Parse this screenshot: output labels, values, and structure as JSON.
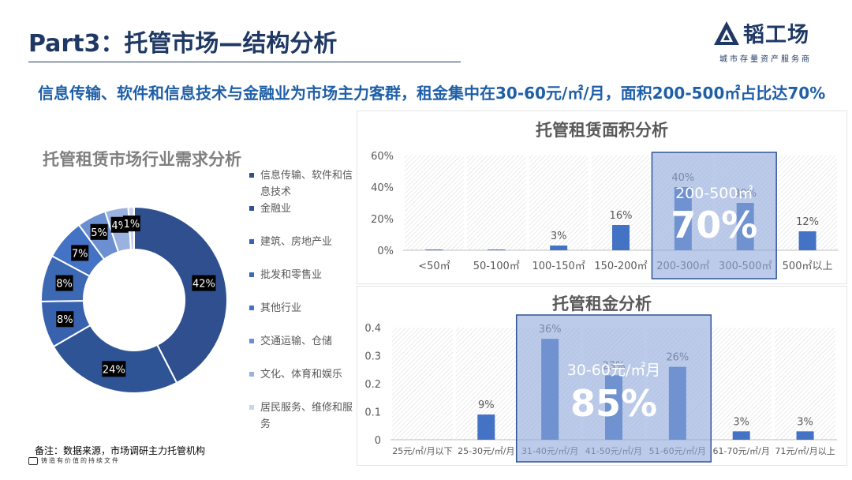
{
  "header": {
    "title": "Part3：托管市场—结构分析",
    "logo_name": "韬工场",
    "logo_tagline": "城市存量资产服务商"
  },
  "headline": "信息传输、软件和信息技术与金融业为市场主力客群，租金集中在30-60元/㎡/月，面积200-500㎡占比达70%",
  "note": "备注：数据来源，市场调研主力托管机构",
  "footer_text": "铸造有价值的持续文件",
  "colors": {
    "navy": "#1f3864",
    "bar": "#4472c4",
    "highlight_fill": "#8ea9db",
    "headline_blue": "#1f5fa8"
  },
  "chart_data": [
    {
      "type": "pie",
      "title": "托管租赁市场行业需求分析",
      "style": "donut",
      "categories": [
        "信息传输、软件和信息技术",
        "金融业",
        "建筑、房地产业",
        "批发和零售业",
        "其他行业",
        "交通运输、仓储",
        "文化、体育和娱乐",
        "居民服务、维修和服务"
      ],
      "values": [
        42,
        24,
        8,
        8,
        7,
        5,
        4,
        1
      ],
      "labels": [
        "42%",
        "24%",
        "8%",
        "8%",
        "7%",
        "5%",
        "4%",
        "1%"
      ],
      "colors": [
        "#2f4f8f",
        "#2f5496",
        "#3862ad",
        "#3c68b4",
        "#4472c4",
        "#6b8fd1",
        "#9bb1de",
        "#c9d4ec"
      ],
      "legend_position": "right"
    },
    {
      "type": "bar",
      "title": "托管租赁面积分析",
      "categories": [
        "<50㎡",
        "50-100㎡",
        "100-150㎡",
        "150-200㎡",
        "200-300㎡",
        "300-500㎡",
        "500㎡以上"
      ],
      "values": [
        0.5,
        0.5,
        3,
        16,
        40,
        30,
        12
      ],
      "labels": [
        "",
        "",
        "3%",
        "16%",
        "40%",
        "30%",
        "12%"
      ],
      "yticks": [
        "0%",
        "20%",
        "40%",
        "60%"
      ],
      "ylim": [
        0,
        60
      ],
      "grid": "vertical hatched bands",
      "highlight": {
        "range_label": "200-500㎡",
        "value_label": "70%",
        "categories": [
          "200-300㎡",
          "300-500㎡"
        ]
      }
    },
    {
      "type": "bar",
      "title": "托管租金分析",
      "categories": [
        "25元/㎡/月以下",
        "25-30元/㎡/月",
        "31-40元/㎡/月",
        "41-50元/㎡/月",
        "51-60元/㎡/月",
        "61-70元/㎡/月",
        "71元/㎡/月以上"
      ],
      "values": [
        0,
        0.09,
        0.36,
        0.23,
        0.26,
        0.03,
        0.03
      ],
      "labels": [
        "",
        "9%",
        "36%",
        "23%",
        "26%",
        "3%",
        "3%"
      ],
      "yticks": [
        "0",
        "0.1",
        "0.2",
        "0.3",
        "0.4"
      ],
      "ylim": [
        0,
        0.4
      ],
      "grid": "vertical hatched bands",
      "highlight": {
        "range_label": "30-60元/㎡月",
        "value_label": "85%",
        "categories": [
          "31-40元/㎡/月",
          "41-50元/㎡/月",
          "51-60元/㎡/月"
        ]
      }
    }
  ]
}
